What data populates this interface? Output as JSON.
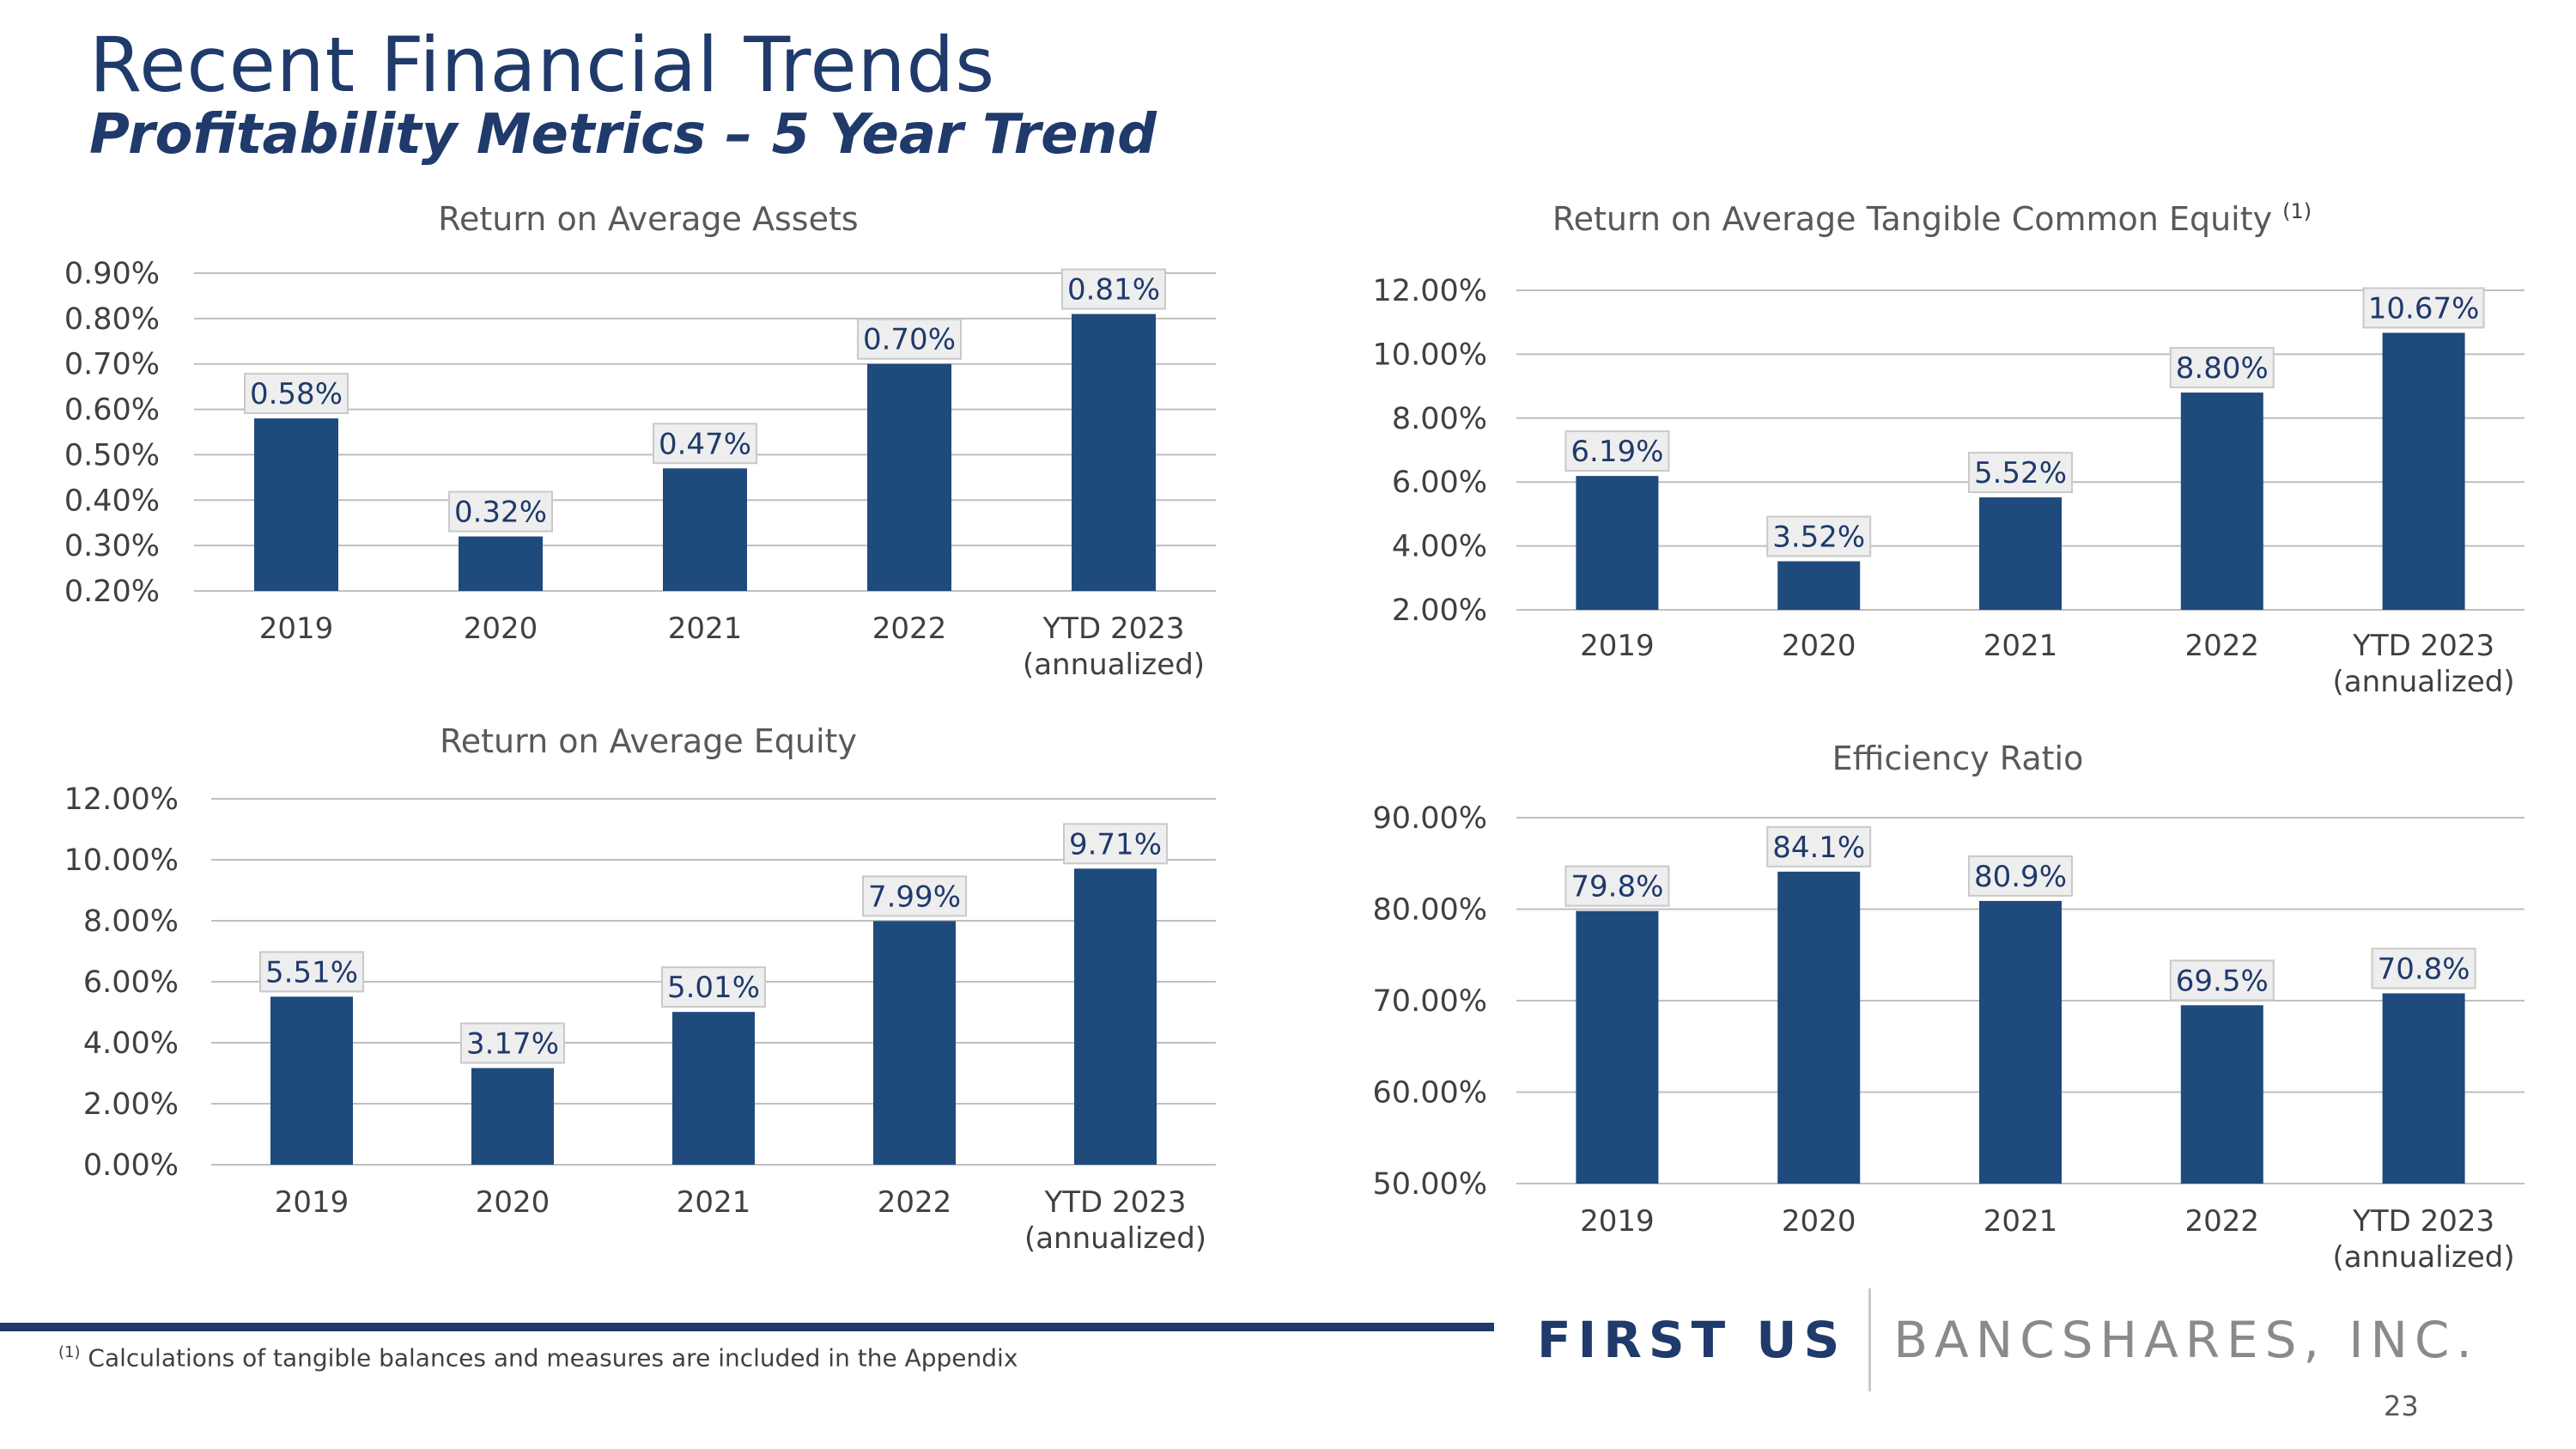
{
  "page": {
    "title": "Recent Financial Trends",
    "subtitle": "Profitability Metrics – 5 Year Trend",
    "footnote_marker": "(1)",
    "footnote_text": "Calculations of tangible balances and measures are included in the Appendix",
    "logo_part1": "FIRST US",
    "logo_part2": "BANCSHARES, INC.",
    "page_number": "23"
  },
  "style": {
    "bar_color": "#1f4a7c",
    "text_navy": "#1f3a6b",
    "grid_color": "#bfbfbf"
  },
  "chart_data": [
    {
      "type": "bar",
      "title": "Return on Average Assets",
      "title_superscript": "",
      "categories": [
        [
          "2019"
        ],
        [
          "2020"
        ],
        [
          "2021"
        ],
        [
          "2022"
        ],
        [
          "YTD 2023",
          "(annualized)"
        ]
      ],
      "values": [
        0.58,
        0.32,
        0.47,
        0.7,
        0.81
      ],
      "data_labels": [
        "0.58%",
        "0.32%",
        "0.47%",
        "0.70%",
        "0.81%"
      ],
      "ylim": [
        0.2,
        0.9
      ],
      "yticks": [
        0.2,
        0.3,
        0.4,
        0.5,
        0.6,
        0.7,
        0.8,
        0.9
      ],
      "ytick_labels": [
        "0.20%",
        "0.30%",
        "0.40%",
        "0.50%",
        "0.60%",
        "0.70%",
        "0.80%",
        "0.90%"
      ],
      "grid": true
    },
    {
      "type": "bar",
      "title": "Return on Average Tangible Common Equity",
      "title_superscript": "(1)",
      "categories": [
        [
          "2019"
        ],
        [
          "2020"
        ],
        [
          "2021"
        ],
        [
          "2022"
        ],
        [
          "YTD 2023",
          "(annualized)"
        ]
      ],
      "values": [
        6.19,
        3.52,
        5.52,
        8.8,
        10.67
      ],
      "data_labels": [
        "6.19%",
        "3.52%",
        "5.52%",
        "8.80%",
        "10.67%"
      ],
      "ylim": [
        2.0,
        12.0
      ],
      "yticks": [
        2.0,
        4.0,
        6.0,
        8.0,
        10.0,
        12.0
      ],
      "ytick_labels": [
        "2.00%",
        "4.00%",
        "6.00%",
        "8.00%",
        "10.00%",
        "12.00%"
      ],
      "grid": true
    },
    {
      "type": "bar",
      "title": "Return on Average Equity",
      "title_superscript": "",
      "categories": [
        [
          "2019"
        ],
        [
          "2020"
        ],
        [
          "2021"
        ],
        [
          "2022"
        ],
        [
          "YTD 2023",
          "(annualized)"
        ]
      ],
      "values": [
        5.51,
        3.17,
        5.01,
        7.99,
        9.71
      ],
      "data_labels": [
        "5.51%",
        "3.17%",
        "5.01%",
        "7.99%",
        "9.71%"
      ],
      "ylim": [
        0.0,
        12.0
      ],
      "yticks": [
        0.0,
        2.0,
        4.0,
        6.0,
        8.0,
        10.0,
        12.0
      ],
      "ytick_labels": [
        "0.00%",
        "2.00%",
        "4.00%",
        "6.00%",
        "8.00%",
        "10.00%",
        "12.00%"
      ],
      "grid": true
    },
    {
      "type": "bar",
      "title": "Efficiency Ratio",
      "title_superscript": "",
      "categories": [
        [
          "2019"
        ],
        [
          "2020"
        ],
        [
          "2021"
        ],
        [
          "2022"
        ],
        [
          "YTD 2023",
          "(annualized)"
        ]
      ],
      "values": [
        79.8,
        84.1,
        80.9,
        69.5,
        70.8
      ],
      "data_labels": [
        "79.8%",
        "84.1%",
        "80.9%",
        "69.5%",
        "70.8%"
      ],
      "ylim": [
        50.0,
        90.0
      ],
      "yticks": [
        50.0,
        60.0,
        70.0,
        80.0,
        90.0
      ],
      "ytick_labels": [
        "50.00%",
        "60.00%",
        "70.00%",
        "80.00%",
        "90.00%"
      ],
      "grid": true
    }
  ]
}
